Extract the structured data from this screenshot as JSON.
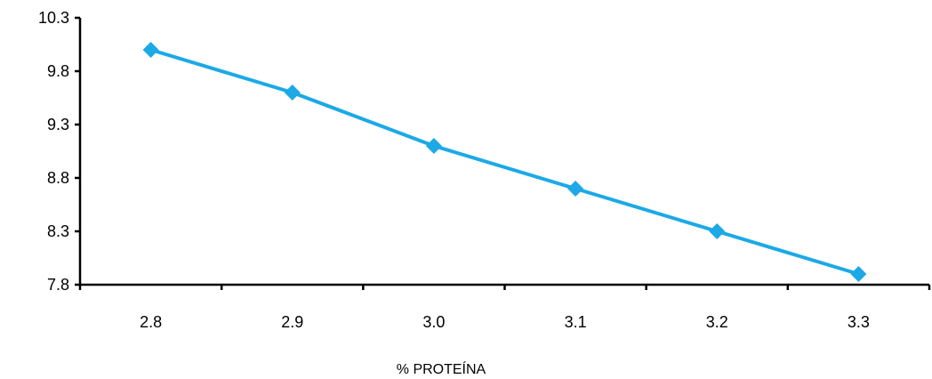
{
  "chart_data": {
    "type": "line",
    "title": "",
    "xlabel": "% PROTEÍNA",
    "ylabel": "",
    "x": [
      "2.8",
      "2.9",
      "3.0",
      "3.1",
      "3.2",
      "3.3"
    ],
    "series": [
      {
        "values": [
          10.0,
          9.6,
          9.1,
          8.7,
          8.3,
          7.9
        ],
        "color": "#1ca9e6",
        "marker": "diamond"
      }
    ],
    "y_ticks": [
      "7.8",
      "8.3",
      "8.8",
      "9.3",
      "9.8",
      "10.3"
    ],
    "ylim": [
      7.8,
      10.3
    ],
    "grid": false,
    "legend": "none",
    "colors": {
      "axis": "#000000",
      "line": "#1ca9e6"
    }
  }
}
